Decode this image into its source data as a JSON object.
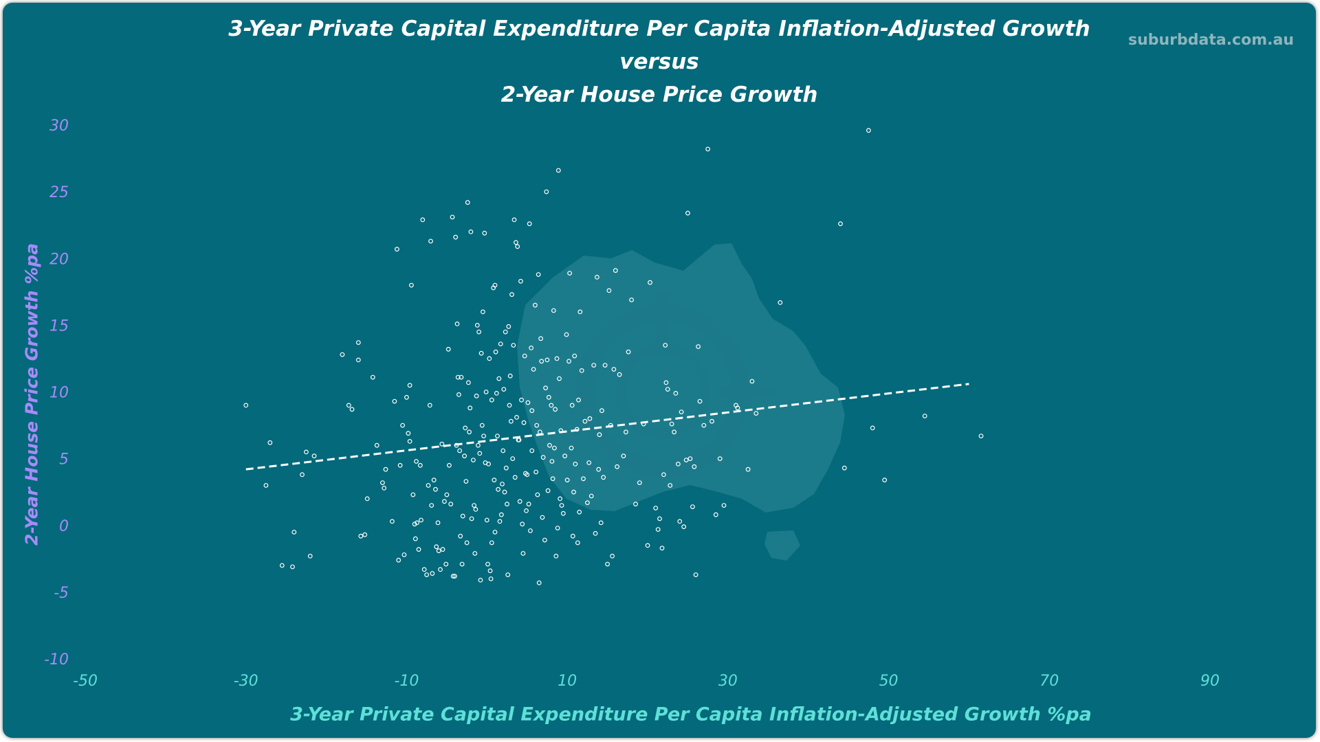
{
  "brand_text": "suburbdata.com.au",
  "colors": {
    "background": "#04697a",
    "title": "#ffffff",
    "y_axis_text": "#a78bfa",
    "x_axis_text": "#5ee0d8",
    "points": "#ffffff",
    "trendline": "#ffffff",
    "watermark": "#2f8a99"
  },
  "chart_data": {
    "type": "scatter",
    "title_lines": [
      "3-Year Private Capital Expenditure Per Capita Inflation-Adjusted Growth",
      "versus",
      "2-Year House Price Growth"
    ],
    "xlabel": "3-Year Private Capital Expenditure Per Capita Inflation-Adjusted Growth %pa",
    "ylabel": "2-Year House Price Growth %pa",
    "xlim": [
      -50,
      90
    ],
    "ylim": [
      -10,
      30
    ],
    "x_ticks": [
      "-50",
      "-30",
      "-10",
      "10",
      "30",
      "50",
      "70",
      "90"
    ],
    "y_ticks": [
      "30",
      "25",
      "20",
      "15",
      "10",
      "5",
      "0",
      "-5",
      "-10"
    ],
    "grid": false,
    "marker": "hollow-circle",
    "trendline": {
      "style": "dashed",
      "x": [
        -30,
        60
      ],
      "y": [
        4.2,
        10.6
      ]
    },
    "points": [
      [
        -30,
        9.0
      ],
      [
        -27,
        6.2
      ],
      [
        -27.5,
        3.0
      ],
      [
        -24,
        -0.5
      ],
      [
        -25.5,
        -3.0
      ],
      [
        -24.2,
        -3.1
      ],
      [
        -23,
        3.8
      ],
      [
        -22.5,
        5.5
      ],
      [
        -22,
        -2.3
      ],
      [
        -21.5,
        5.2
      ],
      [
        -18,
        12.8
      ],
      [
        -17.2,
        9.0
      ],
      [
        -16.8,
        8.7
      ],
      [
        -16,
        13.7
      ],
      [
        -16,
        12.4
      ],
      [
        -15.7,
        -0.8
      ],
      [
        -15.2,
        -0.7
      ],
      [
        -14.9,
        2.0
      ],
      [
        -14.2,
        11.1
      ],
      [
        -13.7,
        6.0
      ],
      [
        -13,
        3.2
      ],
      [
        -12.8,
        2.8
      ],
      [
        -12.6,
        4.2
      ],
      [
        -11.8,
        0.3
      ],
      [
        -11.5,
        9.3
      ],
      [
        -11.2,
        20.7
      ],
      [
        -11,
        -2.6
      ],
      [
        -10.8,
        4.5
      ],
      [
        -10.5,
        7.5
      ],
      [
        -10.3,
        -2.2
      ],
      [
        -10,
        9.6
      ],
      [
        -9.8,
        6.9
      ],
      [
        -9.6,
        10.5
      ],
      [
        -9.6,
        6.3
      ],
      [
        -9.4,
        18.0
      ],
      [
        -9.2,
        2.3
      ],
      [
        -9,
        0.1
      ],
      [
        -8.8,
        4.8
      ],
      [
        -8.7,
        0.2
      ],
      [
        -8.5,
        -1.8
      ],
      [
        -8.3,
        4.5
      ],
      [
        -8.2,
        0.4
      ],
      [
        -8,
        22.9
      ],
      [
        -7.8,
        -3.3
      ],
      [
        -7.5,
        -3.7
      ],
      [
        -7.3,
        3.0
      ],
      [
        -7.1,
        9.0
      ],
      [
        -7,
        21.3
      ],
      [
        -6.9,
        1.5
      ],
      [
        -6.8,
        -3.6
      ],
      [
        -6.6,
        3.4
      ],
      [
        -6.4,
        2.7
      ],
      [
        -6.3,
        -1.6
      ],
      [
        -6,
        -1.9
      ],
      [
        -5.8,
        -3.3
      ],
      [
        -5.6,
        6.1
      ],
      [
        -5.5,
        -1.8
      ],
      [
        -5.3,
        1.8
      ],
      [
        -5.1,
        -2.9
      ],
      [
        -5,
        2.3
      ],
      [
        -4.8,
        13.2
      ],
      [
        -4.7,
        4.5
      ],
      [
        -4.5,
        1.6
      ],
      [
        -4.3,
        23.1
      ],
      [
        -4.2,
        -3.8
      ],
      [
        -4,
        -3.8
      ],
      [
        -3.9,
        21.6
      ],
      [
        -3.8,
        6.0
      ],
      [
        -3.7,
        15.1
      ],
      [
        -3.6,
        11.1
      ],
      [
        -3.5,
        9.8
      ],
      [
        -3.4,
        5.6
      ],
      [
        -3.2,
        11.1
      ],
      [
        -3.1,
        -2.9
      ],
      [
        -3,
        0.7
      ],
      [
        -2.8,
        5.2
      ],
      [
        -2.7,
        7.3
      ],
      [
        -2.5,
        -1.3
      ],
      [
        -2.4,
        24.2
      ],
      [
        -2.3,
        10.7
      ],
      [
        -2.2,
        7.0
      ],
      [
        -2.1,
        8.8
      ],
      [
        -2,
        22.0
      ],
      [
        -1.9,
        0.5
      ],
      [
        -1.7,
        4.9
      ],
      [
        -1.6,
        1.5
      ],
      [
        -1.5,
        -2.1
      ],
      [
        -1.3,
        9.7
      ],
      [
        -1.2,
        15.0
      ],
      [
        -1.1,
        6.0
      ],
      [
        -1,
        14.5
      ],
      [
        -0.9,
        5.4
      ],
      [
        -0.8,
        -4.1
      ],
      [
        -0.7,
        12.9
      ],
      [
        -0.6,
        7.5
      ],
      [
        -0.5,
        16.0
      ],
      [
        -0.4,
        6.7
      ],
      [
        -0.3,
        21.9
      ],
      [
        -0.2,
        4.7
      ],
      [
        -0.1,
        10.0
      ],
      [
        0,
        0.4
      ],
      [
        0.1,
        -2.9
      ],
      [
        0.2,
        4.6
      ],
      [
        0.3,
        12.5
      ],
      [
        0.4,
        -3.4
      ],
      [
        0.5,
        -4.0
      ],
      [
        0.6,
        -1.3
      ],
      [
        0.8,
        17.8
      ],
      [
        0.9,
        3.4
      ],
      [
        1,
        18.0
      ],
      [
        1.1,
        13.0
      ],
      [
        1.2,
        9.9
      ],
      [
        1.3,
        6.7
      ],
      [
        1.4,
        2.7
      ],
      [
        1.5,
        11.0
      ],
      [
        1.6,
        0.3
      ],
      [
        1.7,
        13.6
      ],
      [
        1.8,
        0.8
      ],
      [
        1.9,
        3.1
      ],
      [
        2,
        5.6
      ],
      [
        2.1,
        10.2
      ],
      [
        2.2,
        2.5
      ],
      [
        2.3,
        14.5
      ],
      [
        2.5,
        1.6
      ],
      [
        2.6,
        -3.7
      ],
      [
        2.7,
        14.9
      ],
      [
        2.8,
        9.0
      ],
      [
        2.9,
        11.2
      ],
      [
        3,
        7.8
      ],
      [
        3.1,
        17.3
      ],
      [
        3.2,
        5.0
      ],
      [
        3.3,
        13.5
      ],
      [
        3.4,
        22.9
      ],
      [
        3.5,
        3.6
      ],
      [
        3.6,
        21.2
      ],
      [
        3.8,
        20.9
      ],
      [
        3.9,
        6.4
      ],
      [
        4,
        6.4
      ],
      [
        4.1,
        1.8
      ],
      [
        4.2,
        18.3
      ],
      [
        4.3,
        9.4
      ],
      [
        4.4,
        0.1
      ],
      [
        4.5,
        -2.1
      ],
      [
        4.6,
        7.7
      ],
      [
        4.7,
        12.7
      ],
      [
        4.8,
        3.9
      ],
      [
        5,
        3.8
      ],
      [
        5.1,
        9.2
      ],
      [
        5.2,
        1.6
      ],
      [
        5.3,
        22.6
      ],
      [
        5.4,
        -0.4
      ],
      [
        5.5,
        13.3
      ],
      [
        5.6,
        8.6
      ],
      [
        5.8,
        11.7
      ],
      [
        6,
        16.5
      ],
      [
        6.1,
        4.0
      ],
      [
        6.2,
        7.5
      ],
      [
        6.3,
        2.3
      ],
      [
        6.4,
        18.8
      ],
      [
        6.5,
        -4.3
      ],
      [
        6.6,
        7.0
      ],
      [
        6.7,
        14.0
      ],
      [
        6.8,
        12.3
      ],
      [
        7,
        5.1
      ],
      [
        7.2,
        -1.1
      ],
      [
        7.4,
        25.0
      ],
      [
        7.5,
        12.4
      ],
      [
        7.6,
        2.6
      ],
      [
        7.7,
        9.6
      ],
      [
        7.8,
        6.0
      ],
      [
        8,
        9.0
      ],
      [
        8.1,
        4.8
      ],
      [
        8.2,
        3.5
      ],
      [
        8.3,
        16.1
      ],
      [
        8.4,
        5.8
      ],
      [
        8.5,
        8.7
      ],
      [
        8.6,
        -2.3
      ],
      [
        8.7,
        12.5
      ],
      [
        8.9,
        26.6
      ],
      [
        9,
        11.0
      ],
      [
        9.2,
        7.1
      ],
      [
        9.3,
        1.5
      ],
      [
        9.5,
        0.9
      ],
      [
        9.7,
        5.2
      ],
      [
        9.9,
        14.3
      ],
      [
        10,
        3.4
      ],
      [
        10.2,
        12.3
      ],
      [
        10.3,
        18.9
      ],
      [
        10.5,
        5.8
      ],
      [
        10.6,
        9.0
      ],
      [
        10.7,
        -0.8
      ],
      [
        10.8,
        2.5
      ],
      [
        10.9,
        12.7
      ],
      [
        11,
        4.6
      ],
      [
        11.2,
        7.2
      ],
      [
        11.3,
        -1.3
      ],
      [
        11.4,
        9.4
      ],
      [
        11.6,
        16.0
      ],
      [
        11.8,
        11.6
      ],
      [
        12,
        3.5
      ],
      [
        12.2,
        7.8
      ],
      [
        12.5,
        1.7
      ],
      [
        12.8,
        8.0
      ],
      [
        13,
        2.2
      ],
      [
        13.3,
        12.0
      ],
      [
        13.5,
        -0.6
      ],
      [
        13.7,
        18.6
      ],
      [
        13.9,
        4.2
      ],
      [
        14,
        6.8
      ],
      [
        14.3,
        8.6
      ],
      [
        14.5,
        3.6
      ],
      [
        14.7,
        12.0
      ],
      [
        15,
        -2.9
      ],
      [
        15.2,
        17.6
      ],
      [
        15.4,
        7.5
      ],
      [
        15.6,
        -2.3
      ],
      [
        15.8,
        11.7
      ],
      [
        16,
        19.1
      ],
      [
        16.2,
        4.4
      ],
      [
        16.5,
        11.3
      ],
      [
        17,
        5.2
      ],
      [
        17.3,
        7.0
      ],
      [
        17.6,
        13.0
      ],
      [
        18,
        16.9
      ],
      [
        18.5,
        1.6
      ],
      [
        19,
        3.2
      ],
      [
        19.5,
        7.6
      ],
      [
        20,
        -1.5
      ],
      [
        20.3,
        18.2
      ],
      [
        21,
        1.3
      ],
      [
        21.3,
        -0.3
      ],
      [
        21.5,
        0.5
      ],
      [
        21.8,
        -1.7
      ],
      [
        22,
        3.8
      ],
      [
        22.2,
        13.5
      ],
      [
        22.3,
        10.7
      ],
      [
        22.5,
        10.2
      ],
      [
        22.8,
        3.0
      ],
      [
        23,
        7.6
      ],
      [
        23.3,
        7.0
      ],
      [
        23.5,
        9.9
      ],
      [
        23.8,
        4.6
      ],
      [
        24,
        0.3
      ],
      [
        24.2,
        8.5
      ],
      [
        24.5,
        -0.1
      ],
      [
        24.8,
        4.9
      ],
      [
        25,
        23.4
      ],
      [
        25.3,
        5.0
      ],
      [
        25.6,
        1.4
      ],
      [
        25.8,
        4.4
      ],
      [
        26,
        -3.7
      ],
      [
        26.3,
        13.4
      ],
      [
        26.5,
        9.3
      ],
      [
        27,
        7.5
      ],
      [
        27.5,
        28.2
      ],
      [
        28,
        7.8
      ],
      [
        28.5,
        0.8
      ],
      [
        29,
        5.0
      ],
      [
        29.5,
        1.5
      ],
      [
        31,
        9.0
      ],
      [
        31.2,
        8.8
      ],
      [
        32.5,
        4.2
      ],
      [
        33,
        10.8
      ],
      [
        33.5,
        8.4
      ],
      [
        36.5,
        16.7
      ],
      [
        44,
        22.6
      ],
      [
        44.5,
        4.3
      ],
      [
        47.5,
        29.6
      ],
      [
        48,
        7.3
      ],
      [
        49.5,
        3.4
      ],
      [
        54.5,
        8.2
      ],
      [
        61.5,
        6.7
      ],
      [
        -8.9,
        -1.0
      ],
      [
        -6.1,
        0.2
      ],
      [
        -3.3,
        -0.8
      ],
      [
        -1.4,
        1.2
      ],
      [
        1.0,
        -0.5
      ],
      [
        2.4,
        4.3
      ],
      [
        4.9,
        1.1
      ],
      [
        6.9,
        0.6
      ],
      [
        9.1,
        2.0
      ],
      [
        12.7,
        4.7
      ],
      [
        14.2,
        0.2
      ],
      [
        3.7,
        8.1
      ],
      [
        0.6,
        9.4
      ],
      [
        -2.6,
        3.3
      ],
      [
        5.6,
        5.6
      ],
      [
        8.8,
        -0.2
      ],
      [
        11.5,
        1.0
      ],
      [
        7.3,
        10.3
      ]
    ]
  }
}
